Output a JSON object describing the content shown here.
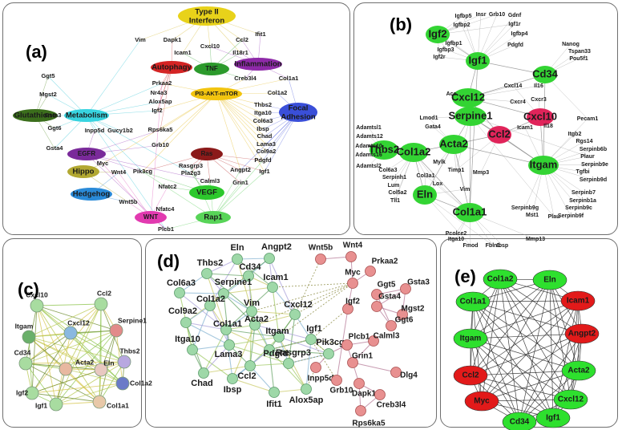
{
  "panels": {
    "a": {
      "label": "(a)"
    },
    "b": {
      "label": "(b)"
    },
    "c": {
      "label": "(c)"
    },
    "d": {
      "label": "(d)"
    },
    "e": {
      "label": "(e)"
    }
  },
  "panel_a": {
    "categories": [
      {
        "name": "Type II Interferon",
        "lines": [
          "Type II",
          "Interferon"
        ],
        "color": "#e8d21a"
      },
      {
        "name": "Autophagy",
        "lines": [
          "Autophagy"
        ],
        "color": "#d42424"
      },
      {
        "name": "TNF",
        "lines": [
          "TNF"
        ],
        "color": "#2c9a2c"
      },
      {
        "name": "Inflammation",
        "lines": [
          "Inflammation"
        ],
        "color": "#8e2aa8"
      },
      {
        "name": "PI3-AKT-mTOR",
        "lines": [
          "PI3-AKT-mTOR"
        ],
        "color": "#f2c40f"
      },
      {
        "name": "Glutathione",
        "lines": [
          "Glutathione"
        ],
        "color": "#3b6e1c"
      },
      {
        "name": "Metabolism",
        "lines": [
          "Metabolism"
        ],
        "color": "#38d4e0"
      },
      {
        "name": "Focal Adhesion",
        "lines": [
          "Focal",
          "Adhesion"
        ],
        "color": "#3a4fd8"
      },
      {
        "name": "EGFR",
        "lines": [
          "EGFR"
        ],
        "color": "#7a2a9a"
      },
      {
        "name": "Ras",
        "lines": [
          "Ras"
        ],
        "color": "#8b1a1a"
      },
      {
        "name": "Hippo",
        "lines": [
          "Hippo"
        ],
        "color": "#b2a832"
      },
      {
        "name": "Hedgehog",
        "lines": [
          "Hedgehog"
        ],
        "color": "#2a8ad8"
      },
      {
        "name": "VEGF",
        "lines": [
          "VEGF"
        ],
        "color": "#2cc82c"
      },
      {
        "name": "WNT",
        "lines": [
          "WNT"
        ],
        "color": "#e23ab0"
      },
      {
        "name": "Rap1",
        "lines": [
          "Rap1"
        ],
        "color": "#58d458"
      }
    ],
    "genes": [
      "Vim",
      "Dapk1",
      "Icam1",
      "Cxcl10",
      "Ccl2",
      "Ifit1",
      "Il18r1",
      "Ggt5",
      "Mgst2",
      "Prkaa2",
      "Nr4a3",
      "Alox5ap",
      "Igf2",
      "Creb3l4",
      "Col1a1",
      "Col1a2",
      "Gsta3",
      "Ggt6",
      "Inpp5d",
      "Gucy1b2",
      "Gsta4",
      "Rps6ka5",
      "Grb10",
      "Thbs2",
      "Itga10",
      "Col6a3",
      "Ibsp",
      "Chad",
      "Lama3",
      "Col9a2",
      "Pdgfd",
      "Igf1",
      "Myc",
      "Wnt4",
      "Pik3cg",
      "Rasgrp3",
      "Pla2g3",
      "Angpt2",
      "Wnt5b",
      "Nfatc2",
      "Calml3",
      "Grin1",
      "Nfatc4",
      "Plcb1"
    ]
  },
  "panel_b": {
    "hubs": [
      {
        "name": "Igf2",
        "color": "#33d433"
      },
      {
        "name": "Igf1",
        "color": "#33d433"
      },
      {
        "name": "Cd34",
        "color": "#33d433"
      },
      {
        "name": "Cxcl12",
        "color": "#33d433"
      },
      {
        "name": "Serpine1",
        "color": "#33d433"
      },
      {
        "name": "Cxcl10",
        "color": "#e0245a"
      },
      {
        "name": "Ccl2",
        "color": "#e0245a"
      },
      {
        "name": "Acta2",
        "color": "#33d433"
      },
      {
        "name": "Thbs2",
        "color": "#33d433"
      },
      {
        "name": "Col1a2",
        "color": "#33d433"
      },
      {
        "name": "Itgam",
        "color": "#33d433"
      },
      {
        "name": "Eln",
        "color": "#33d433"
      },
      {
        "name": "Col1a1",
        "color": "#33d433"
      }
    ],
    "genes": [
      "Igfbp5",
      "Insr",
      "Grb10",
      "Gdnf",
      "Igfbp2",
      "Igf1r",
      "Igfbp1",
      "Igfbp4",
      "Igfbp3",
      "Pdgfd",
      "Igf2r",
      "Nanog",
      "Tspan33",
      "Pou5f1",
      "Cxcl14",
      "Il16",
      "Ace",
      "Cxcr4",
      "Cxcr3",
      "Lmod1",
      "Icam1",
      "Il18",
      "Pecam1",
      "Gata4",
      "Adamtsl1",
      "Adamts12",
      "Adamts10",
      "Adamts16",
      "Adamtsl2",
      "Itgb2",
      "Rgs14",
      "Serpinb6b",
      "Plaur",
      "Serpinb9e",
      "Tgfbi",
      "Serpinb9d",
      "Mylk",
      "Timp1",
      "Mmp3",
      "Col6a3",
      "Serpinh1",
      "Lum",
      "Col5a2",
      "Tll1",
      "Col3a1",
      "Lox",
      "Vim",
      "Serpinb7",
      "Serpinb1a",
      "Serpinb9c",
      "Serpinb9g",
      "Serpinb9f",
      "Mst1",
      "Plau",
      "Pcolce2",
      "Itga10",
      "Fmod",
      "Fbln1",
      "Ibsp",
      "Mmp13"
    ]
  },
  "panel_c": {
    "nodes": [
      {
        "name": "Cxcl10",
        "color": "#a8dca0"
      },
      {
        "name": "Ccl2",
        "color": "#a8dca0"
      },
      {
        "name": "Serpine1",
        "color": "#e28a8a"
      },
      {
        "name": "Itgam",
        "color": "#6ab06a"
      },
      {
        "name": "Cxcl12",
        "color": "#8ab8e0"
      },
      {
        "name": "Thbs2",
        "color": "#b8a8e0"
      },
      {
        "name": "Cd34",
        "color": "#a8dca0"
      },
      {
        "name": "Acta2",
        "color": "#e8b8a0"
      },
      {
        "name": "Eln",
        "color": "#e8c8c0"
      },
      {
        "name": "Col1a2",
        "color": "#6a7ac8"
      },
      {
        "name": "Igf2",
        "color": "#a8dca0"
      },
      {
        "name": "Igf1",
        "color": "#a8dca0"
      },
      {
        "name": "Col1a1",
        "color": "#e8c8a8"
      }
    ]
  },
  "panel_d": {
    "green_nodes": [
      "Eln",
      "Angpt2",
      "Thbs2",
      "Cd34",
      "Icam1",
      "Col6a3",
      "Serpine1",
      "Col1a2",
      "Vim",
      "Cxcl12",
      "Col9a2",
      "Acta2",
      "Col1a1",
      "Itgam",
      "Igf1",
      "Itga10",
      "Lama3",
      "Pdgfd",
      "Pik3cg",
      "Chad",
      "Ibsp",
      "Ccl2",
      "Rasgrp3",
      "Ifit1",
      "Alox5ap"
    ],
    "red_nodes": [
      "Wnt5b",
      "Wnt4",
      "Prkaa2",
      "Myc",
      "Ggt5",
      "Gsta3",
      "Gsta4",
      "Igf2",
      "Mgst2",
      "Ggt6",
      "Calml3",
      "Plcb1",
      "Inpp5d",
      "Grin1",
      "Grb10",
      "Dlg4",
      "Dapk1",
      "Creb3l4",
      "Rps6ka5"
    ]
  },
  "panel_e": {
    "nodes": [
      {
        "name": "Col1a2",
        "color": "#2ee02e"
      },
      {
        "name": "Eln",
        "color": "#2ee02e"
      },
      {
        "name": "Col1a1",
        "color": "#2ee02e"
      },
      {
        "name": "Icam1",
        "color": "#e21a1a"
      },
      {
        "name": "Itgam",
        "color": "#2ee02e"
      },
      {
        "name": "Angpt2",
        "color": "#e21a1a"
      },
      {
        "name": "Ccl2",
        "color": "#e21a1a"
      },
      {
        "name": "Acta2",
        "color": "#2ee02e"
      },
      {
        "name": "Myc",
        "color": "#e21a1a"
      },
      {
        "name": "Cxcl12",
        "color": "#2ee02e"
      },
      {
        "name": "Cd34",
        "color": "#2ee02e"
      },
      {
        "name": "Igf1",
        "color": "#2ee02e"
      }
    ]
  }
}
